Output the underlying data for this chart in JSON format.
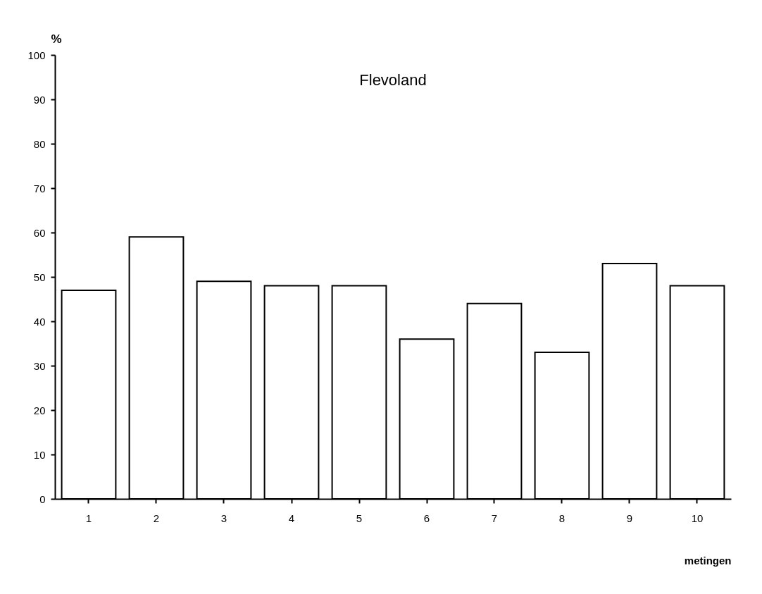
{
  "chart_data": {
    "type": "bar",
    "title": "Flevoland",
    "xlabel": "metingen",
    "ylabel": "%",
    "categories": [
      "1",
      "2",
      "3",
      "4",
      "5",
      "6",
      "7",
      "8",
      "9",
      "10"
    ],
    "values": [
      47,
      59,
      49,
      48,
      48,
      36,
      44,
      33,
      53,
      48
    ],
    "color": "#ffffff",
    "ylim": [
      0,
      100
    ],
    "yticks": [
      0,
      10,
      20,
      30,
      40,
      50,
      60,
      70,
      80,
      90,
      100
    ],
    "grid": false
  }
}
